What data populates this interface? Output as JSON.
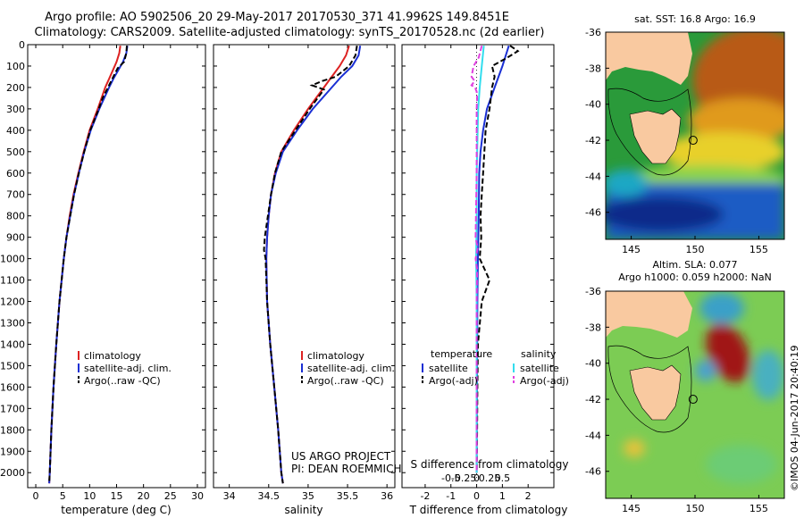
{
  "header": {
    "line1": "Argo profile: AO 5902506_20 29-May-2017 20170530_371 41.9962S 149.8451E",
    "line2": "Climatology: CARS2009. Satellite-adjusted climatology: synTS_20170528.nc (2d earlier)"
  },
  "colors": {
    "climatology": "#dd2222",
    "satellite": "#1a2fd4",
    "argo": "#000000",
    "salinity_sat": "#33ddee",
    "salinity_argo": "#e040e0"
  },
  "project_note": {
    "line1": "US ARGO PROJECT",
    "line2": "PI: DEAN ROEMMICH"
  },
  "side_stamp": "©IMOS 04-Jun-2017 20:40:19",
  "chart_data": [
    {
      "type": "line",
      "id": "temperature",
      "xlabel": "temperature (deg C)",
      "xlim": [
        -1.5,
        31.5
      ],
      "xticks": [
        0,
        5,
        10,
        15,
        20,
        25,
        30
      ],
      "ylim": [
        0,
        2070
      ],
      "yticks": [
        0,
        100,
        200,
        300,
        400,
        500,
        600,
        700,
        800,
        900,
        1000,
        1100,
        1200,
        1300,
        1400,
        1500,
        1600,
        1700,
        1800,
        1900,
        2000
      ],
      "grid": false,
      "legend": {
        "position": "lower-middle",
        "entries": [
          "climatology",
          "satellite-adj. clim.",
          "Argo(..raw -QC)"
        ]
      },
      "series": [
        {
          "name": "climatology",
          "depth": [
            5,
            40,
            80,
            120,
            160,
            200,
            250,
            300,
            400,
            500,
            600,
            700,
            800,
            900,
            1000,
            1200,
            1400,
            1600,
            1800,
            2000,
            2050
          ],
          "values": [
            15.7,
            15.5,
            15.0,
            14.3,
            13.6,
            12.9,
            12.2,
            11.5,
            10.0,
            8.9,
            7.9,
            7.0,
            6.3,
            5.7,
            5.2,
            4.4,
            3.8,
            3.3,
            2.9,
            2.6,
            2.5
          ]
        },
        {
          "name": "satellite-adj. clim.",
          "depth": [
            5,
            40,
            80,
            120,
            160,
            200,
            250,
            300,
            400,
            500,
            600,
            700,
            800,
            900,
            1000,
            1200,
            1400,
            1600,
            1800,
            2000,
            2050
          ],
          "values": [
            17.0,
            16.8,
            16.2,
            15.3,
            14.4,
            13.6,
            12.7,
            11.8,
            10.2,
            9.0,
            8.0,
            7.1,
            6.4,
            5.7,
            5.2,
            4.4,
            3.8,
            3.3,
            2.9,
            2.6,
            2.5
          ]
        },
        {
          "name": "Argo(..raw -QC)",
          "depth": [
            5,
            40,
            80,
            110,
            140,
            170,
            200,
            250,
            300,
            400,
            500,
            600,
            700,
            800,
            900,
            1000,
            1200,
            1400,
            1600,
            1800,
            2000,
            2050
          ],
          "values": [
            16.9,
            16.8,
            16.4,
            15.2,
            14.6,
            14.0,
            13.4,
            12.4,
            11.7,
            10.1,
            9.0,
            8.0,
            7.1,
            6.4,
            5.7,
            5.2,
            4.4,
            3.8,
            3.3,
            2.9,
            2.6,
            2.5
          ]
        }
      ]
    },
    {
      "type": "line",
      "id": "salinity",
      "xlabel": "salinity",
      "xlim": [
        33.8,
        36.1
      ],
      "xticks": [
        34,
        34.5,
        35,
        35.5,
        36
      ],
      "ylim": [
        0,
        2070
      ],
      "grid": false,
      "legend": {
        "position": "lower-middle",
        "entries": [
          "climatology",
          "satellite-adj. clim.",
          "Argo(..raw -QC)"
        ]
      },
      "series": [
        {
          "name": "climatology",
          "depth": [
            5,
            50,
            100,
            150,
            200,
            250,
            300,
            400,
            500,
            600,
            700,
            800,
            900,
            1000,
            1200,
            1400,
            1600,
            1800,
            2000,
            2050
          ],
          "values": [
            35.52,
            35.48,
            35.4,
            35.3,
            35.2,
            35.1,
            35.0,
            34.82,
            34.66,
            34.58,
            34.53,
            34.5,
            34.48,
            34.47,
            34.48,
            34.52,
            34.57,
            34.62,
            34.66,
            34.68
          ]
        },
        {
          "name": "satellite-adj. clim.",
          "depth": [
            5,
            50,
            100,
            150,
            200,
            250,
            300,
            400,
            500,
            600,
            700,
            800,
            900,
            1000,
            1200,
            1400,
            1600,
            1800,
            2000,
            2050
          ],
          "values": [
            35.66,
            35.64,
            35.56,
            35.42,
            35.3,
            35.18,
            35.06,
            34.86,
            34.68,
            34.59,
            34.53,
            34.5,
            34.48,
            34.47,
            34.48,
            34.52,
            34.57,
            34.62,
            34.66,
            34.68
          ]
        },
        {
          "name": "Argo(..raw -QC)",
          "depth": [
            5,
            50,
            100,
            150,
            170,
            190,
            210,
            250,
            300,
            400,
            500,
            600,
            700,
            800,
            900,
            960,
            1000,
            1200,
            1400,
            1600,
            1800,
            2000,
            2050
          ],
          "values": [
            35.62,
            35.6,
            35.52,
            35.35,
            35.18,
            35.05,
            35.2,
            35.12,
            35.02,
            34.84,
            34.66,
            34.58,
            34.53,
            34.49,
            34.45,
            34.44,
            34.46,
            34.48,
            34.52,
            34.57,
            34.62,
            34.66,
            34.68
          ]
        }
      ]
    },
    {
      "type": "line",
      "id": "difference",
      "xlabel": "T difference from climatology",
      "xlabel_top": "S difference from climatology",
      "xlim": [
        -2.9,
        3.0
      ],
      "xticks": [
        -2,
        -1,
        0,
        1,
        2
      ],
      "xticks_top": [
        -0.5,
        -0.25,
        0,
        0.25,
        0.5
      ],
      "xticks_top_labels": [
        "-0.5",
        "-0.25",
        "0",
        "0.25",
        "0.5"
      ],
      "ylim": [
        0,
        2070
      ],
      "grid": false,
      "legend": {
        "position": "lower-middle",
        "entries": [
          "temperature",
          "satellite",
          "Argo(-adj)",
          "salinity",
          "satellite",
          "Argo(-adj)"
        ]
      },
      "series": [
        {
          "name": "T satellite",
          "depth": [
            5,
            100,
            200,
            300,
            400,
            500,
            600,
            800,
            1000,
            1200,
            1500,
            2000
          ],
          "values": [
            1.25,
            1.0,
            0.7,
            0.4,
            0.25,
            0.15,
            0.1,
            0.08,
            0.05,
            0.03,
            0.02,
            0.0
          ]
        },
        {
          "name": "T Argo(-adj)",
          "depth": [
            5,
            30,
            60,
            100,
            150,
            200,
            300,
            400,
            500,
            600,
            700,
            800,
            900,
            1000,
            1100,
            1200,
            1400,
            1600,
            1800,
            2000
          ],
          "values": [
            1.3,
            1.6,
            1.2,
            0.6,
            0.7,
            0.6,
            0.5,
            0.35,
            0.3,
            0.25,
            0.2,
            0.15,
            0.18,
            0.12,
            0.5,
            0.2,
            0.05,
            0.03,
            0.02,
            0.0
          ]
        },
        {
          "name": "S satellite",
          "depth": [
            5,
            100,
            200,
            300,
            400,
            600,
            800,
            1000,
            1200,
            1600,
            2000
          ],
          "values": [
            0.14,
            0.1,
            0.06,
            0.03,
            0.02,
            0.0,
            0.0,
            -0.01,
            0.0,
            0.0,
            0.0
          ]
        },
        {
          "name": "S Argo(-adj)",
          "depth": [
            5,
            60,
            100,
            150,
            170,
            190,
            200,
            220,
            250,
            300,
            400,
            600,
            900,
            950,
            1000,
            1050,
            1200,
            2000
          ],
          "values": [
            0.1,
            0.04,
            -0.06,
            -0.1,
            -0.04,
            -0.1,
            -0.03,
            0.0,
            0.01,
            0.0,
            0.0,
            0.0,
            -0.02,
            0.02,
            -0.02,
            0.01,
            0.0,
            0.0
          ]
        }
      ]
    },
    {
      "type": "heatmap",
      "id": "sst_map",
      "title": "sat. SST: 16.8 Argo: 16.9",
      "xlim": [
        143,
        157
      ],
      "ylim": [
        -47.5,
        -36
      ],
      "xticks": [
        145,
        150,
        155
      ],
      "yticks": [
        -36,
        -38,
        -40,
        -42,
        -44,
        -46
      ],
      "profile_location": [
        149.85,
        -42.0
      ]
    },
    {
      "type": "heatmap",
      "id": "sla_map",
      "title": "Altim. SLA: 0.077",
      "subtitle": "Argo h1000: 0.059 h2000: NaN",
      "xlim": [
        143,
        157
      ],
      "ylim": [
        -47.5,
        -36
      ],
      "xticks": [
        145,
        150,
        155
      ],
      "yticks": [
        -36,
        -38,
        -40,
        -42,
        -44,
        -46
      ],
      "profile_location": [
        149.85,
        -42.0
      ]
    }
  ]
}
